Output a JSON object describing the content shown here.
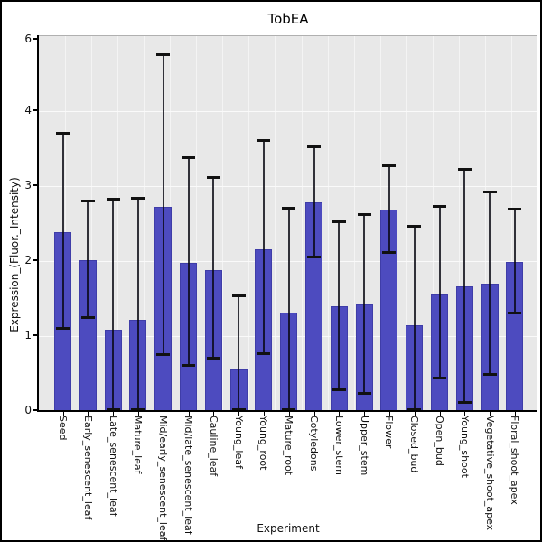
{
  "title": "TobEA",
  "xlabel": "Experiment",
  "ylabel": "Expression_(Fluor._Intensity)",
  "chart_data": {
    "type": "bar",
    "title": "TobEA",
    "xlabel": "Experiment",
    "ylabel": "Expression_(Fluor._Intensity)",
    "ylim": [
      0,
      6
    ],
    "y_ticks": [
      0,
      1,
      2,
      3,
      4,
      6
    ],
    "grid": true,
    "legend": "none",
    "bar_color": "#4d4bbf",
    "error_bar_color": "#111111",
    "plot_background": "#e8e8e8",
    "categories": [
      "Seed",
      "Early_senescent_leaf",
      "Late_senescent_leaf",
      "Mature_leaf",
      "Mid/early_senescent_leaf",
      "Mid/late_senescent_leaf",
      "Cauline_leaf",
      "Young_leaf",
      "Young_root",
      "Mature_root",
      "Cotyledons",
      "Lower_stem",
      "Upper_stem",
      "Flower",
      "Closed_bud",
      "Open_bud",
      "Young_shoot",
      "Vegetative_shoot_apex",
      "Floral_shoot_apex"
    ],
    "values": [
      2.39,
      2.01,
      1.08,
      1.22,
      2.72,
      1.98,
      1.88,
      0.56,
      2.16,
      1.31,
      2.78,
      1.4,
      1.42,
      2.69,
      1.15,
      1.56,
      1.66,
      1.7,
      1.99
    ],
    "error_low": [
      1.1,
      1.25,
      0.02,
      0.02,
      0.75,
      0.61,
      0.71,
      0.02,
      0.77,
      0.02,
      2.05,
      0.28,
      0.23,
      2.12,
      0.02,
      0.44,
      0.12,
      0.49,
      1.31
    ],
    "error_high": [
      3.7,
      2.8,
      2.83,
      2.84,
      4.75,
      3.38,
      3.12,
      1.54,
      3.61,
      2.71,
      3.52,
      2.53,
      2.62,
      3.27,
      2.46,
      2.73,
      3.22,
      2.92,
      2.69
    ]
  }
}
